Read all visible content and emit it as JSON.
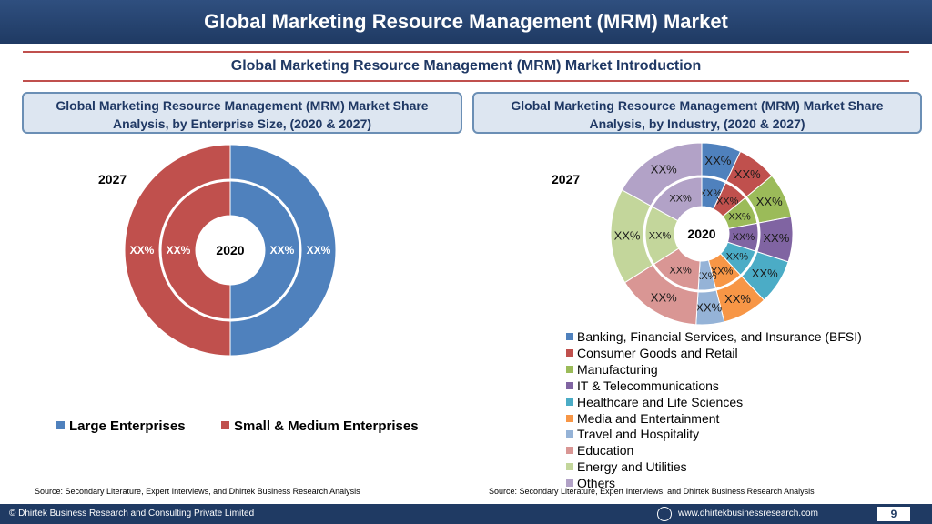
{
  "header": {
    "title": "Global Marketing Resource Management (MRM) Market"
  },
  "subtitle": "Global Marketing Resource Management (MRM) Market  Introduction",
  "panels": {
    "left_title": "Global Marketing Resource Management (MRM) Market  Share Analysis, by Enterprise Size, (2020 & 2027)",
    "right_title": "Global Marketing Resource Management (MRM) Market  Share Analysis, by Industry, (2020 & 2027)"
  },
  "sources": {
    "left": "Source: Secondary Literature, Expert Interviews, and Dhirtek Business Research Analysis",
    "right": "Source: Secondary Literature, Expert Interviews, and Dhirtek Business Research Analysis"
  },
  "footer": {
    "copyright": "© Dhirtek Business Research and Consulting Private Limited",
    "website": "www.dhirtekbusinessresearch.com",
    "page": "9"
  },
  "chart_data": [
    {
      "type": "pie",
      "subtype": "nested-doughnut",
      "outer_label": "2027",
      "center_label": "2020",
      "categories": [
        "Large Enterprises",
        "Small & Medium Enterprises"
      ],
      "colors": [
        "#4f81bd",
        "#c0504d"
      ],
      "series": [
        {
          "name": "2027",
          "values": [
            50,
            50
          ],
          "data_labels": [
            "XX%",
            "XX%"
          ]
        },
        {
          "name": "2020",
          "values": [
            50,
            50
          ],
          "data_labels": [
            "XX%",
            "XX%"
          ]
        }
      ],
      "legend": "bottom"
    },
    {
      "type": "pie",
      "subtype": "nested-doughnut",
      "outer_label": "2027",
      "center_label": "2020",
      "categories": [
        "Banking, Financial Services, and Insurance (BFSI)",
        "Consumer Goods and Retail",
        "Manufacturing",
        "IT & Telecommunications",
        "Healthcare and Life Sciences",
        "Media and Entertainment",
        "Travel and Hospitality",
        "Education",
        "Energy and Utilities",
        "Others"
      ],
      "colors": [
        "#4f81bd",
        "#c0504d",
        "#9bbb59",
        "#8064a2",
        "#4bacc6",
        "#f79646",
        "#95b3d7",
        "#d99694",
        "#c3d69b",
        "#b2a2c7"
      ],
      "series": [
        {
          "name": "2027",
          "values": [
            7,
            7,
            8,
            8,
            8,
            8,
            5,
            15,
            17,
            17
          ],
          "data_labels": [
            "XX%",
            "XX%",
            "XX%",
            "XX%",
            "XX%",
            "XX%",
            "XX%",
            "XX%",
            "XX%",
            "XX%"
          ]
        },
        {
          "name": "2020",
          "values": [
            7,
            7,
            8,
            8,
            8,
            8,
            5,
            15,
            17,
            17
          ],
          "data_labels": [
            "XX%",
            "XX%",
            "XX%",
            "XX%",
            "XX%",
            "XX%",
            "XX%",
            "XX%",
            "XX%",
            "XX%"
          ]
        }
      ],
      "legend": "right"
    }
  ]
}
